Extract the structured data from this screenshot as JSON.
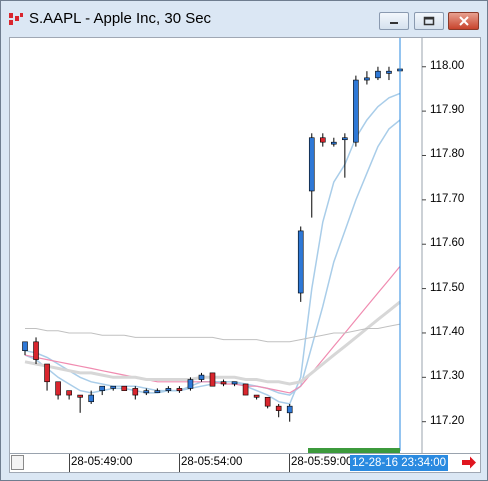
{
  "window": {
    "title": "S.AAPL - Apple Inc, 30 Sec",
    "buttons": [
      "minimize",
      "maximize",
      "close"
    ]
  },
  "axis": {
    "time_labels": [
      "28-05:49:00",
      "28-05:54:00",
      "28-05:59:00"
    ],
    "cursor_time": "12-28-16 23:34:00",
    "price_labels": [
      "118.00",
      "117.90",
      "117.80",
      "117.70",
      "117.60",
      "117.50",
      "117.40",
      "117.30",
      "117.20"
    ]
  },
  "colors": {
    "up_candle": "#2e78d6",
    "down_candle": "#d9262e",
    "ma_fast": "#a9cde9",
    "ma_pink": "#f08bb0",
    "ma_gray": "#d7d7d7",
    "ma_darkgray": "#c0c0c0",
    "cursor_line": "#2a8ae0",
    "volume_green": "#3c9a3c"
  },
  "chart_data": {
    "type": "candlestick",
    "interval": "30 Sec",
    "ylim": [
      117.17,
      118.04
    ],
    "candles": [
      {
        "o": 117.36,
        "h": 117.38,
        "l": 117.35,
        "c": 117.38
      },
      {
        "o": 117.38,
        "h": 117.39,
        "l": 117.33,
        "c": 117.34
      },
      {
        "o": 117.33,
        "h": 117.33,
        "l": 117.27,
        "c": 117.29
      },
      {
        "o": 117.29,
        "h": 117.29,
        "l": 117.25,
        "c": 117.26
      },
      {
        "o": 117.27,
        "h": 117.27,
        "l": 117.25,
        "c": 117.26
      },
      {
        "o": 117.26,
        "h": 117.26,
        "l": 117.22,
        "c": 117.255
      },
      {
        "o": 117.245,
        "h": 117.27,
        "l": 117.24,
        "c": 117.26
      },
      {
        "o": 117.27,
        "h": 117.28,
        "l": 117.26,
        "c": 117.28
      },
      {
        "o": 117.275,
        "h": 117.28,
        "l": 117.27,
        "c": 117.28
      },
      {
        "o": 117.28,
        "h": 117.28,
        "l": 117.27,
        "c": 117.27
      },
      {
        "o": 117.275,
        "h": 117.28,
        "l": 117.25,
        "c": 117.26
      },
      {
        "o": 117.265,
        "h": 117.275,
        "l": 117.26,
        "c": 117.27
      },
      {
        "o": 117.27,
        "h": 117.275,
        "l": 117.265,
        "c": 117.27
      },
      {
        "o": 117.27,
        "h": 117.28,
        "l": 117.265,
        "c": 117.275
      },
      {
        "o": 117.275,
        "h": 117.28,
        "l": 117.265,
        "c": 117.27
      },
      {
        "o": 117.275,
        "h": 117.3,
        "l": 117.27,
        "c": 117.295
      },
      {
        "o": 117.295,
        "h": 117.31,
        "l": 117.29,
        "c": 117.305
      },
      {
        "o": 117.31,
        "h": 117.31,
        "l": 117.28,
        "c": 117.28
      },
      {
        "o": 117.29,
        "h": 117.295,
        "l": 117.28,
        "c": 117.285
      },
      {
        "o": 117.285,
        "h": 117.29,
        "l": 117.28,
        "c": 117.29
      },
      {
        "o": 117.285,
        "h": 117.285,
        "l": 117.26,
        "c": 117.26
      },
      {
        "o": 117.26,
        "h": 117.26,
        "l": 117.25,
        "c": 117.255
      },
      {
        "o": 117.255,
        "h": 117.255,
        "l": 117.23,
        "c": 117.235
      },
      {
        "o": 117.235,
        "h": 117.24,
        "l": 117.21,
        "c": 117.225
      },
      {
        "o": 117.22,
        "h": 117.24,
        "l": 117.2,
        "c": 117.235
      },
      {
        "o": 117.49,
        "h": 117.64,
        "l": 117.47,
        "c": 117.63
      },
      {
        "o": 117.72,
        "h": 117.85,
        "l": 117.66,
        "c": 117.84
      },
      {
        "o": 117.84,
        "h": 117.85,
        "l": 117.82,
        "c": 117.83
      },
      {
        "o": 117.83,
        "h": 117.84,
        "l": 117.82,
        "c": 117.83
      },
      {
        "o": 117.84,
        "h": 117.85,
        "l": 117.75,
        "c": 117.84
      },
      {
        "o": 117.83,
        "h": 117.98,
        "l": 117.82,
        "c": 117.97
      },
      {
        "o": 117.97,
        "h": 117.99,
        "l": 117.96,
        "c": 117.975
      },
      {
        "o": 117.975,
        "h": 118.0,
        "l": 117.97,
        "c": 117.99
      },
      {
        "o": 117.985,
        "h": 118.0,
        "l": 117.97,
        "c": 117.99
      },
      {
        "o": 117.995,
        "h": 118.0,
        "l": 117.9,
        "c": 117.995
      }
    ],
    "series": [
      {
        "values": [
          117.35,
          117.34,
          117.32,
          117.3,
          117.285,
          117.27,
          117.265,
          117.27,
          117.275,
          117.275,
          117.27,
          117.265,
          117.265,
          117.27,
          117.27,
          117.28,
          117.29,
          117.29,
          117.29,
          117.29,
          117.28,
          117.27,
          117.26,
          117.245,
          117.24,
          117.3,
          117.5,
          117.65,
          117.74,
          117.78,
          117.84,
          117.88,
          117.91,
          117.93,
          117.94
        ]
      },
      {
        "values": [
          117.36,
          117.355,
          117.345,
          117.33,
          117.315,
          117.3,
          117.29,
          117.285,
          117.28,
          117.28,
          117.28,
          117.275,
          117.27,
          117.27,
          117.27,
          117.275,
          117.28,
          117.285,
          117.29,
          117.29,
          117.285,
          117.28,
          117.275,
          117.265,
          117.26,
          117.28,
          117.37,
          117.46,
          117.56,
          117.63,
          117.7,
          117.76,
          117.82,
          117.86,
          117.88
        ]
      },
      {
        "values": [
          117.35,
          117.345,
          117.34,
          117.335,
          117.33,
          117.325,
          117.32,
          117.315,
          117.31,
          117.305,
          117.3,
          117.295,
          117.29,
          117.29,
          117.29,
          117.29,
          117.29,
          117.29,
          117.285,
          117.285,
          117.28,
          117.28,
          117.275,
          117.27,
          117.265,
          117.28,
          117.31,
          117.34,
          117.37,
          117.4,
          117.43,
          117.46,
          117.49,
          117.52,
          117.55
        ]
      },
      {
        "values": [
          117.335,
          117.33,
          117.325,
          117.32,
          117.315,
          117.31,
          117.31,
          117.305,
          117.3,
          117.3,
          117.3,
          117.295,
          117.295,
          117.295,
          117.295,
          117.295,
          117.3,
          117.3,
          117.3,
          117.3,
          117.295,
          117.295,
          117.29,
          117.29,
          117.285,
          117.29,
          117.31,
          117.33,
          117.35,
          117.37,
          117.39,
          117.41,
          117.43,
          117.45,
          117.47
        ]
      },
      {
        "values": [
          117.41,
          117.41,
          117.405,
          117.405,
          117.4,
          117.4,
          117.4,
          117.395,
          117.395,
          117.395,
          117.39,
          117.39,
          117.39,
          117.39,
          117.39,
          117.39,
          117.39,
          117.39,
          117.385,
          117.385,
          117.385,
          117.385,
          117.38,
          117.38,
          117.38,
          117.385,
          117.39,
          117.395,
          117.4,
          117.4,
          117.405,
          117.41,
          117.41,
          117.415,
          117.42
        ]
      }
    ]
  }
}
